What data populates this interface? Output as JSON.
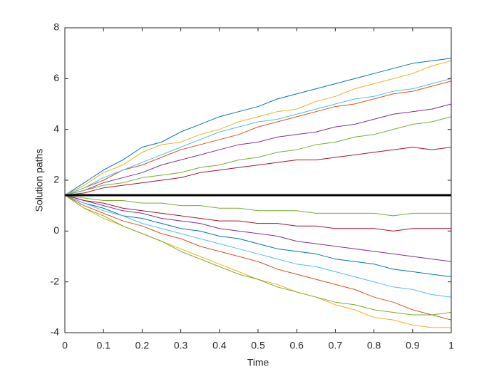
{
  "chart_data": {
    "type": "line",
    "xlabel": "Time",
    "ylabel": "Solution paths",
    "xlim": [
      0,
      1
    ],
    "xticks": [
      0,
      0.1,
      0.2,
      0.3,
      0.4,
      0.5,
      0.6,
      0.7,
      0.8,
      0.9,
      1
    ],
    "ylim": [
      -4,
      8
    ],
    "yticks": [
      -4,
      -2,
      0,
      2,
      4,
      6,
      8
    ],
    "grid": false,
    "box": true,
    "x": [
      0,
      0.05,
      0.1,
      0.15,
      0.2,
      0.25,
      0.3,
      0.35,
      0.4,
      0.45,
      0.5,
      0.55,
      0.6,
      0.65,
      0.7,
      0.75,
      0.8,
      0.85,
      0.9,
      0.95,
      1
    ],
    "series": [
      {
        "color": "#0072BD",
        "values": [
          1.41,
          1.9,
          2.4,
          2.8,
          3.3,
          3.5,
          3.9,
          4.2,
          4.5,
          4.7,
          4.9,
          5.2,
          5.4,
          5.6,
          5.8,
          6.0,
          6.2,
          6.4,
          6.6,
          6.7,
          6.8
        ]
      },
      {
        "color": "#D95319",
        "values": [
          1.41,
          1.7,
          2.0,
          2.4,
          2.6,
          2.9,
          3.2,
          3.4,
          3.6,
          3.8,
          4.1,
          4.3,
          4.5,
          4.7,
          4.9,
          5.0,
          5.2,
          5.4,
          5.5,
          5.7,
          5.9
        ]
      },
      {
        "color": "#EDB120",
        "values": [
          1.41,
          1.8,
          2.3,
          2.6,
          3.1,
          3.4,
          3.5,
          3.8,
          4.0,
          4.3,
          4.5,
          4.7,
          4.8,
          5.1,
          5.3,
          5.6,
          5.8,
          6.0,
          6.2,
          6.5,
          6.7
        ]
      },
      {
        "color": "#7E2F8E",
        "values": [
          1.41,
          1.6,
          1.9,
          2.1,
          2.3,
          2.6,
          2.8,
          3.0,
          3.2,
          3.4,
          3.5,
          3.7,
          3.8,
          3.9,
          4.1,
          4.2,
          4.4,
          4.6,
          4.7,
          4.8,
          5.0
        ]
      },
      {
        "color": "#77AC30",
        "values": [
          1.41,
          1.6,
          1.8,
          1.9,
          2.1,
          2.2,
          2.3,
          2.5,
          2.6,
          2.8,
          2.9,
          3.1,
          3.2,
          3.4,
          3.5,
          3.7,
          3.8,
          4.0,
          4.2,
          4.3,
          4.5
        ]
      },
      {
        "color": "#4DBEEE",
        "values": [
          1.41,
          1.7,
          2.1,
          2.4,
          2.7,
          3.0,
          3.3,
          3.6,
          3.9,
          4.1,
          4.3,
          4.4,
          4.6,
          4.8,
          5.0,
          5.2,
          5.3,
          5.5,
          5.6,
          5.8,
          6.0
        ]
      },
      {
        "color": "#A2142F",
        "values": [
          1.41,
          1.5,
          1.7,
          1.8,
          1.9,
          2.0,
          2.1,
          2.3,
          2.4,
          2.5,
          2.6,
          2.7,
          2.8,
          2.8,
          2.9,
          3.0,
          3.1,
          3.2,
          3.3,
          3.2,
          3.3
        ]
      },
      {
        "color": "#0072BD",
        "values": [
          1.41,
          1.1,
          0.9,
          0.6,
          0.5,
          0.3,
          0.1,
          0.0,
          -0.2,
          -0.3,
          -0.5,
          -0.7,
          -0.8,
          -0.9,
          -1.1,
          -1.2,
          -1.3,
          -1.5,
          -1.6,
          -1.7,
          -1.8
        ]
      },
      {
        "color": "#D95319",
        "values": [
          1.41,
          1.0,
          0.7,
          0.4,
          0.2,
          -0.1,
          -0.3,
          -0.6,
          -0.8,
          -1.0,
          -1.2,
          -1.5,
          -1.7,
          -1.9,
          -2.1,
          -2.3,
          -2.6,
          -2.8,
          -3.1,
          -3.3,
          -3.5
        ]
      },
      {
        "color": "#EDB120",
        "values": [
          1.41,
          0.9,
          0.5,
          0.2,
          -0.1,
          -0.4,
          -0.7,
          -1.0,
          -1.3,
          -1.6,
          -1.9,
          -2.1,
          -2.4,
          -2.6,
          -2.9,
          -3.1,
          -3.4,
          -3.5,
          -3.7,
          -3.8,
          -3.8
        ]
      },
      {
        "color": "#7E2F8E",
        "values": [
          1.41,
          1.2,
          1.0,
          0.8,
          0.7,
          0.5,
          0.4,
          0.3,
          0.1,
          0.0,
          -0.1,
          -0.2,
          -0.4,
          -0.5,
          -0.6,
          -0.7,
          -0.8,
          -0.9,
          -1.0,
          -1.1,
          -1.2
        ]
      },
      {
        "color": "#77AC30",
        "values": [
          1.41,
          1.3,
          1.2,
          1.2,
          1.1,
          1.1,
          1.0,
          1.0,
          0.9,
          0.9,
          0.8,
          0.8,
          0.8,
          0.7,
          0.7,
          0.7,
          0.7,
          0.6,
          0.7,
          0.7,
          0.7
        ]
      },
      {
        "color": "#4DBEEE",
        "values": [
          1.41,
          1.1,
          0.8,
          0.6,
          0.3,
          0.1,
          -0.1,
          -0.3,
          -0.5,
          -0.7,
          -0.9,
          -1.1,
          -1.3,
          -1.4,
          -1.6,
          -1.8,
          -2.0,
          -2.2,
          -2.3,
          -2.5,
          -2.6
        ]
      },
      {
        "color": "#A2142F",
        "values": [
          1.41,
          1.2,
          1.1,
          0.9,
          0.8,
          0.7,
          0.6,
          0.5,
          0.4,
          0.4,
          0.3,
          0.3,
          0.2,
          0.2,
          0.1,
          0.1,
          0.1,
          0.0,
          0.1,
          0.1,
          0.1
        ]
      },
      {
        "color": "#77AC30",
        "values": [
          1.41,
          0.9,
          0.6,
          0.2,
          -0.1,
          -0.4,
          -0.8,
          -1.1,
          -1.4,
          -1.7,
          -1.9,
          -2.2,
          -2.4,
          -2.6,
          -2.8,
          -2.9,
          -3.1,
          -3.2,
          -3.3,
          -3.3,
          -3.2
        ]
      },
      {
        "color": "#000000",
        "width": 3,
        "values": [
          1.41,
          1.41,
          1.41,
          1.41,
          1.41,
          1.41,
          1.41,
          1.41,
          1.41,
          1.41,
          1.41,
          1.41,
          1.41,
          1.41,
          1.41,
          1.41,
          1.41,
          1.41,
          1.41,
          1.41,
          1.41
        ]
      }
    ]
  }
}
